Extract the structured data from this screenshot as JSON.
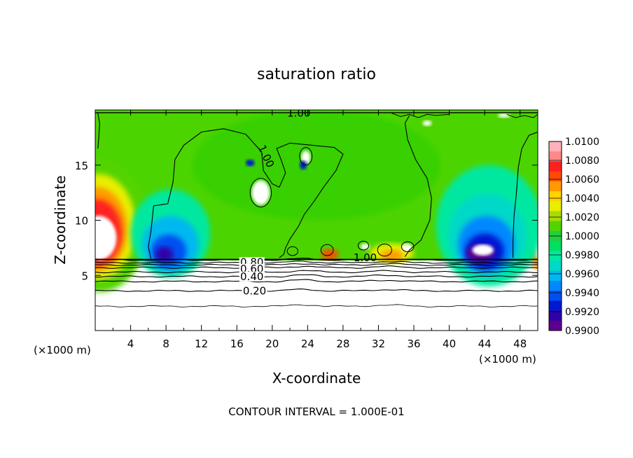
{
  "chart_data": {
    "type": "heatmap",
    "title": "saturation ratio",
    "xlabel": "X-coordinate",
    "ylabel": "Z-coordinate",
    "x_unit_label_left": "(×1000 m)",
    "x_unit_label_right": "(×1000 m)",
    "footer": "CONTOUR INTERVAL = 1.000E-01",
    "xlim": [
      0,
      50
    ],
    "ylim": [
      0,
      20
    ],
    "x_ticks": [
      4,
      8,
      12,
      16,
      20,
      24,
      28,
      32,
      36,
      40,
      44,
      48
    ],
    "y_ticks": [
      5,
      10,
      15
    ],
    "colorbar": {
      "min": 0.99,
      "max": 1.01,
      "labels": [
        "1.0100",
        "1.0080",
        "1.0060",
        "1.0040",
        "1.0020",
        "1.0000",
        "0.9980",
        "0.9960",
        "0.9940",
        "0.9920",
        "0.9900"
      ],
      "colors": [
        "#ffb0b8",
        "#ff8888",
        "#ff2020",
        "#ff4a00",
        "#ff9a00",
        "#ffd200",
        "#e8ee00",
        "#a8dc00",
        "#52d400",
        "#20d040",
        "#00e060",
        "#00e8a0",
        "#00d8c8",
        "#00b8f0",
        "#0088ff",
        "#0050f0",
        "#0018d0",
        "#3000a8",
        "#5c0090"
      ]
    },
    "contour_labels": [
      {
        "text": "1.00",
        "x": 23,
        "z": 19.7
      },
      {
        "text": "1.00",
        "x": 19.3,
        "z": 15.8,
        "angle": 65
      },
      {
        "text": "1.00",
        "x": 30.5,
        "z": 6.6
      },
      {
        "text": "0.80",
        "x": 17.7,
        "z": 6.2
      },
      {
        "text": "0.60",
        "x": 17.7,
        "z": 5.6
      },
      {
        "text": "0.40",
        "x": 17.7,
        "z": 4.9
      },
      {
        "text": "0.20",
        "x": 18.0,
        "z": 3.6
      }
    ],
    "lower_contours": [
      {
        "level": 0.9,
        "z": 6.4
      },
      {
        "level": 0.8,
        "z": 6.15
      },
      {
        "level": 0.7,
        "z": 5.95
      },
      {
        "level": 0.6,
        "z": 5.7
      },
      {
        "level": 0.5,
        "z": 5.3
      },
      {
        "level": 0.4,
        "z": 4.9
      },
      {
        "level": 0.3,
        "z": 4.45
      },
      {
        "level": 0.2,
        "z": 3.6
      },
      {
        "level": 0.1,
        "z": 2.2
      }
    ]
  }
}
